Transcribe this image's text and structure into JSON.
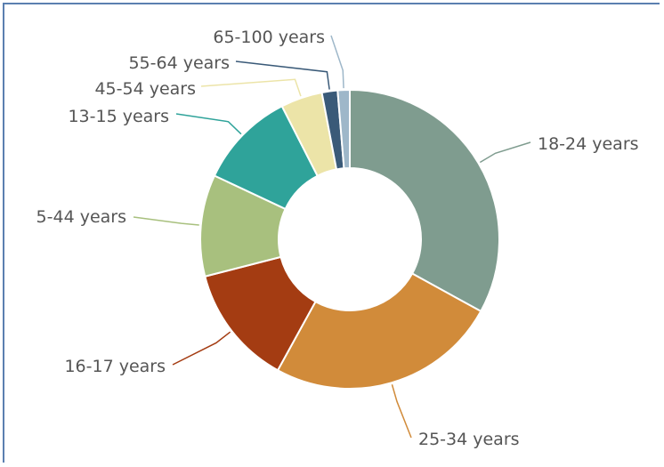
{
  "chart_data": {
    "type": "pie",
    "variant": "donut",
    "title": "",
    "start_angle_deg": 0,
    "direction": "clockwise",
    "slices": [
      {
        "label": "18-24 years",
        "value": 33.0,
        "color": "#7f9c8f"
      },
      {
        "label": "25-34 years",
        "value": 25.0,
        "color": "#d18b3a"
      },
      {
        "label": "16-17 years",
        "value": 13.0,
        "color": "#a43c12"
      },
      {
        "label": "5-44 years",
        "value": 11.0,
        "color": "#a8c07e"
      },
      {
        "label": "13-15 years",
        "value": 10.5,
        "color": "#2fa39a"
      },
      {
        "label": "45-54 years",
        "value": 4.5,
        "color": "#ece4a8"
      },
      {
        "label": "55-64 years",
        "value": 1.7,
        "color": "#3a5a78"
      },
      {
        "label": "65-100 years",
        "value": 1.3,
        "color": "#9eb7c9"
      }
    ],
    "legend": "none",
    "grid": false
  }
}
